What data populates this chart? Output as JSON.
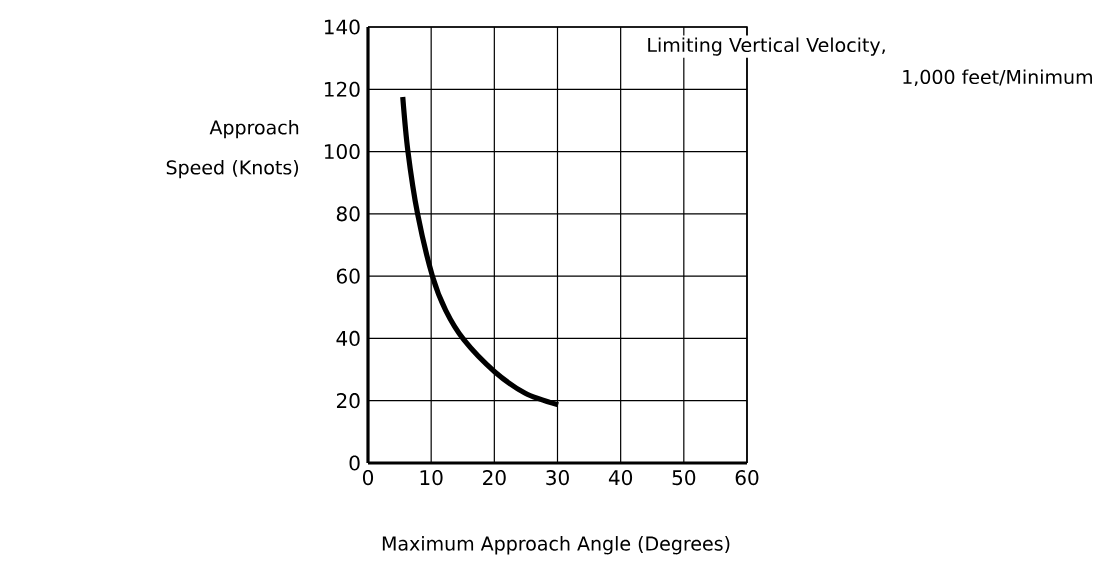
{
  "chart_data": {
    "type": "line",
    "xlabel": "Maximum Approach Angle (Degrees)",
    "ylabel": "Approach Speed (Knots)",
    "annotations": [
      "Limiting Vertical Velocity,",
      "1,000 feet/Minimum"
    ],
    "x": [
      5.5,
      6.3,
      7.85,
      10.2,
      12.3,
      15.2,
      20,
      24.9,
      30.1
    ],
    "values": [
      117.5,
      100.4,
      80,
      60,
      49,
      39.5,
      29.4,
      22.4,
      18.7
    ],
    "color": "#000000",
    "xlim": [
      0,
      60
    ],
    "ylim": [
      0,
      140
    ],
    "xticks": [
      0,
      10,
      20,
      30,
      40,
      50,
      60
    ],
    "yticks": [
      0,
      20,
      40,
      60,
      80,
      100,
      120,
      140
    ],
    "grid": true
  }
}
